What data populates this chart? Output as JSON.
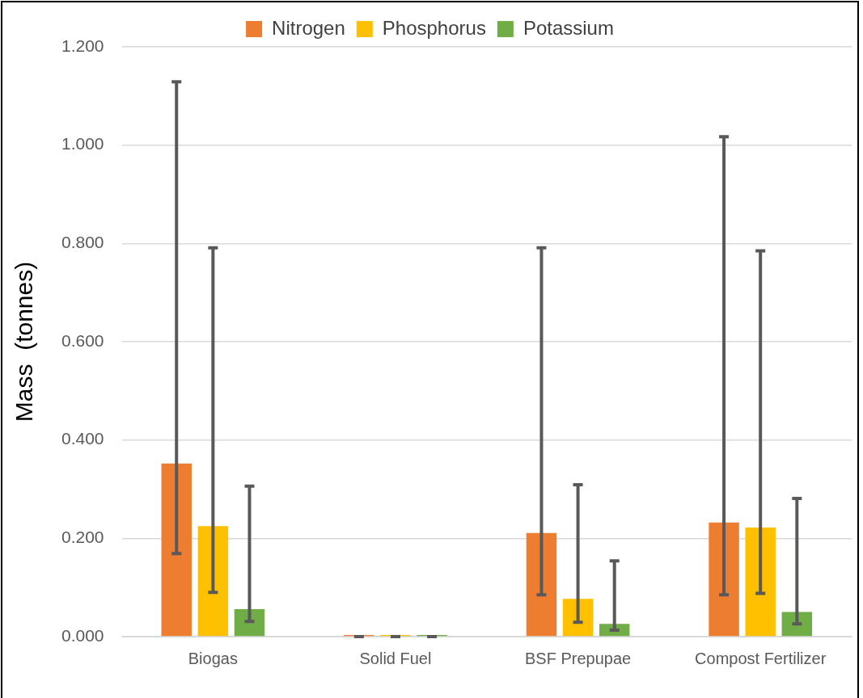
{
  "chart_data": {
    "type": "bar",
    "ylabel": "Mass  (tonnes)",
    "categories": [
      "Biogas",
      "Solid Fuel",
      "BSF Prepupae",
      "Compost Fertilizer"
    ],
    "series": [
      {
        "name": "Nitrogen",
        "color": "#ed7d31",
        "values": [
          0.352,
          0,
          0.211,
          0.232
        ],
        "errors": [
          [
            0.169,
            1.129
          ],
          [
            0,
            0
          ],
          [
            0.085,
            0.791
          ],
          [
            0.085,
            1.017
          ]
        ]
      },
      {
        "name": "Phosphorus",
        "color": "#ffc000",
        "values": [
          0.225,
          0,
          0.077,
          0.222
        ],
        "errors": [
          [
            0.09,
            0.791
          ],
          [
            0,
            0
          ],
          [
            0.029,
            0.309
          ],
          [
            0.088,
            0.785
          ]
        ]
      },
      {
        "name": "Potassium",
        "color": "#70ad47",
        "values": [
          0.056,
          0,
          0.026,
          0.05
        ],
        "errors": [
          [
            0.031,
            0.306
          ],
          [
            0,
            0
          ],
          [
            0.013,
            0.154
          ],
          [
            0.026,
            0.281
          ]
        ]
      }
    ],
    "ylim": [
      0,
      1.2
    ],
    "yticks": [
      {
        "value": 0,
        "label": "0.000"
      },
      {
        "value": 0.2,
        "label": "0.200"
      },
      {
        "value": 0.4,
        "label": "0.400"
      },
      {
        "value": 0.6,
        "label": "0.600"
      },
      {
        "value": 0.8,
        "label": "0.800"
      },
      {
        "value": 1.0,
        "label": "1.000"
      },
      {
        "value": 1.2,
        "label": "1.200"
      }
    ],
    "grid": "y",
    "legend": "top"
  }
}
